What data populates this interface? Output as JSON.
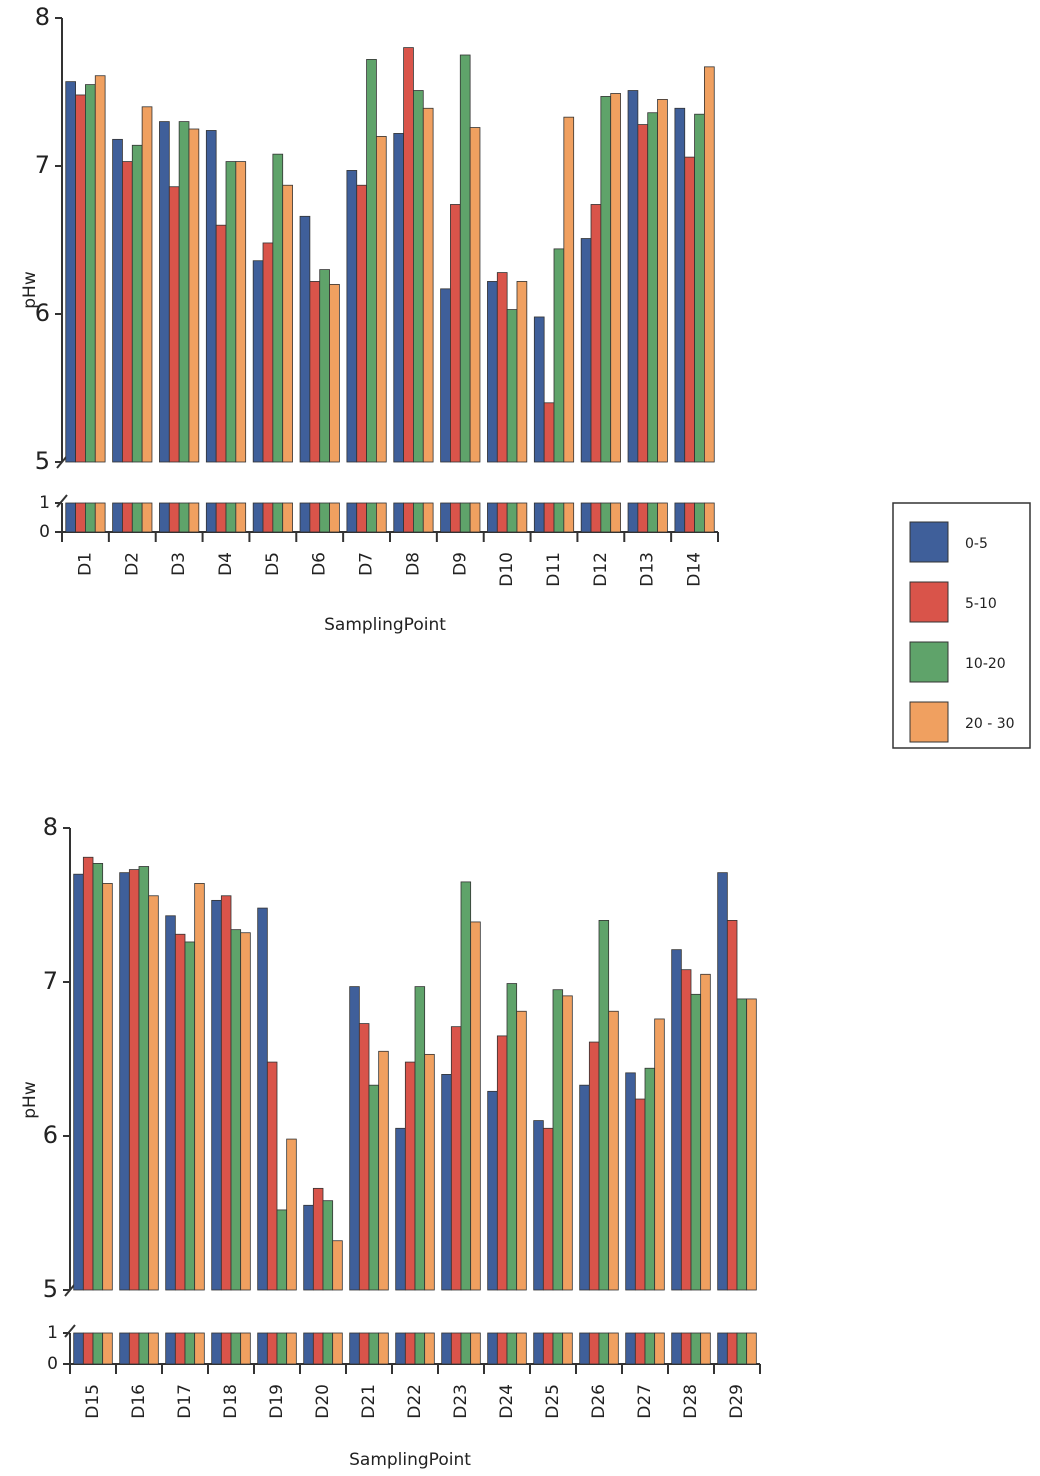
{
  "chart_data": [
    {
      "type": "bar",
      "y_label": "pHw",
      "x_label": "SamplingPoint",
      "categories": [
        "D1",
        "D2",
        "D3",
        "D4",
        "D5",
        "D6",
        "D7",
        "D8",
        "D9",
        "D10",
        "D11",
        "D12",
        "D13",
        "D14"
      ],
      "series": [
        {
          "name": "0-5",
          "color": "#3f5f9a",
          "values": [
            7.57,
            7.18,
            7.3,
            7.24,
            6.36,
            6.66,
            6.97,
            7.22,
            6.17,
            6.22,
            5.98,
            6.51,
            7.51,
            7.39
          ]
        },
        {
          "name": "5-10",
          "color": "#d9544a",
          "values": [
            7.48,
            7.03,
            6.86,
            6.6,
            6.48,
            6.22,
            6.87,
            7.8,
            6.74,
            6.28,
            5.4,
            6.74,
            7.28,
            7.06
          ]
        },
        {
          "name": "10-20",
          "color": "#5fa36a",
          "values": [
            7.55,
            7.14,
            7.3,
            7.03,
            7.08,
            6.3,
            7.72,
            7.51,
            7.75,
            6.03,
            6.44,
            7.47,
            7.36,
            7.35
          ]
        },
        {
          "name": "20 - 30",
          "color": "#f0a060",
          "values": [
            7.61,
            7.4,
            7.25,
            7.03,
            6.87,
            6.2,
            7.2,
            7.39,
            7.26,
            6.22,
            7.33,
            7.49,
            7.45,
            7.67
          ]
        }
      ],
      "ylim": [
        0,
        8
      ],
      "y_break": [
        1,
        5
      ],
      "yticks": [
        0,
        1,
        5,
        6,
        7,
        8
      ],
      "grid": false
    },
    {
      "type": "bar",
      "y_label": "pHw",
      "x_label": "SamplingPoint",
      "categories": [
        "D15",
        "D16",
        "D17",
        "D18",
        "D19",
        "D20",
        "D21",
        "D22",
        "D23",
        "D24",
        "D25",
        "D26",
        "D27",
        "D28",
        "D29"
      ],
      "series": [
        {
          "color": "#3f5f9a",
          "values": [
            7.7,
            7.71,
            7.43,
            7.53,
            7.48,
            5.55,
            6.97,
            6.05,
            6.4,
            6.29,
            6.1,
            6.33,
            6.41,
            7.21,
            7.71
          ]
        },
        {
          "color": "#d9544a",
          "values": [
            7.81,
            7.73,
            7.31,
            7.56,
            6.48,
            5.66,
            6.73,
            6.48,
            6.71,
            6.65,
            6.05,
            6.61,
            6.24,
            7.08,
            7.4
          ]
        },
        {
          "color": "#5fa36a",
          "values": [
            7.77,
            7.75,
            7.26,
            7.34,
            5.52,
            5.58,
            6.33,
            6.97,
            7.65,
            6.99,
            6.95,
            7.4,
            6.44,
            6.92,
            6.89
          ]
        },
        {
          "color": "#f0a060",
          "values": [
            7.64,
            7.56,
            7.64,
            7.32,
            5.98,
            5.32,
            6.55,
            6.53,
            7.39,
            6.81,
            6.91,
            6.81,
            6.76,
            7.05,
            6.89
          ]
        }
      ],
      "ylim": [
        0,
        8
      ],
      "y_break": [
        1,
        5
      ],
      "yticks": [
        0,
        1,
        5,
        6,
        7,
        8
      ],
      "grid": false
    }
  ]
}
